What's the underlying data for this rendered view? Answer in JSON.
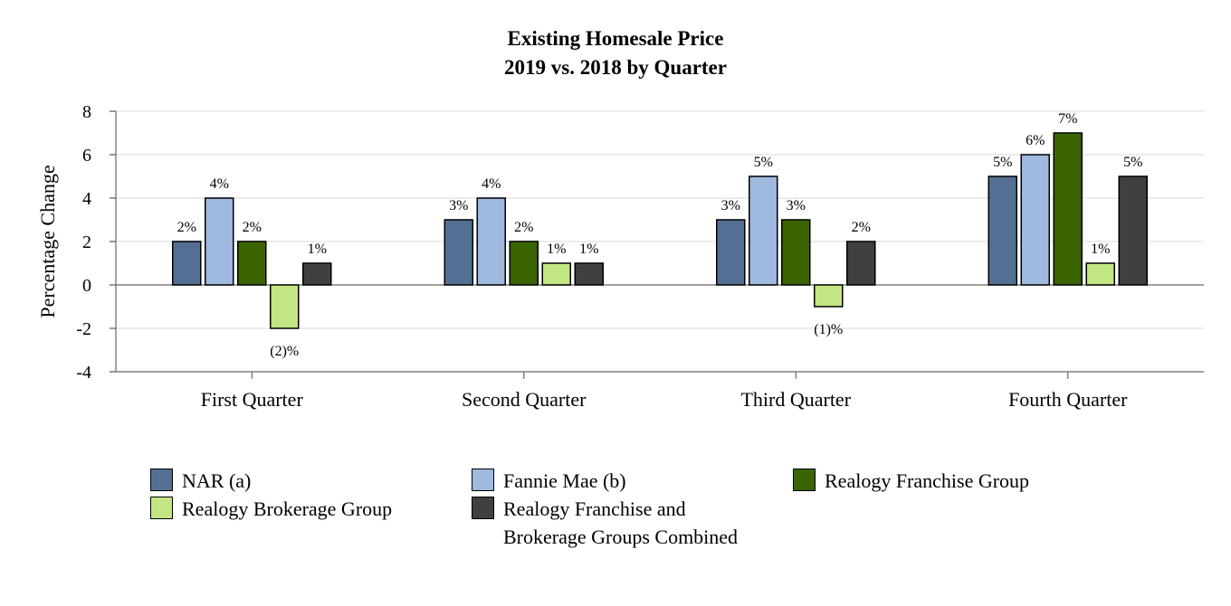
{
  "chart_data": {
    "type": "bar",
    "title": "Existing Homesale Price",
    "subtitle": "2019 vs. 2018 by Quarter",
    "xlabel": "",
    "ylabel": "Percentage Change",
    "ylim": [
      -4,
      8
    ],
    "yticks": [
      "-4",
      "-2",
      "0",
      "2",
      "4",
      "6",
      "8"
    ],
    "grid": true,
    "legend_position": "bottom",
    "categories": [
      "First Quarter",
      "Second Quarter",
      "Third Quarter",
      "Fourth Quarter"
    ],
    "series": [
      {
        "name": "NAR (a)",
        "color": "#536f94",
        "values": [
          2,
          3,
          3,
          5
        ],
        "labels": [
          "2%",
          "3%",
          "3%",
          "5%"
        ]
      },
      {
        "name": "Fannie Mae (b)",
        "color": "#9fb9df",
        "values": [
          4,
          4,
          5,
          6
        ],
        "labels": [
          "4%",
          "4%",
          "5%",
          "6%"
        ]
      },
      {
        "name": "Realogy Franchise Group",
        "color": "#3b6403",
        "values": [
          2,
          2,
          3,
          7
        ],
        "labels": [
          "2%",
          "2%",
          "3%",
          "7%"
        ]
      },
      {
        "name": "Realogy Brokerage Group",
        "color": "#c1e682",
        "values": [
          -2,
          1,
          -1,
          1
        ],
        "labels": [
          "(2)%",
          "1%",
          "(1)%",
          "1%"
        ]
      },
      {
        "name": "Realogy Franchise and Brokerage Groups Combined",
        "color": "#404040",
        "values": [
          1,
          1,
          2,
          5
        ],
        "labels": [
          "1%",
          "1%",
          "2%",
          "5%"
        ]
      }
    ]
  },
  "legend": {
    "items": [
      {
        "lines": [
          "NAR (a)"
        ],
        "color": "#536f94"
      },
      {
        "lines": [
          "Fannie Mae (b)"
        ],
        "color": "#9fb9df"
      },
      {
        "lines": [
          "Realogy Franchise Group"
        ],
        "color": "#3b6403"
      },
      {
        "lines": [
          "Realogy Brokerage Group"
        ],
        "color": "#c1e682"
      },
      {
        "lines": [
          "Realogy Franchise and",
          "Brokerage Groups Combined"
        ],
        "color": "#404040"
      }
    ]
  }
}
